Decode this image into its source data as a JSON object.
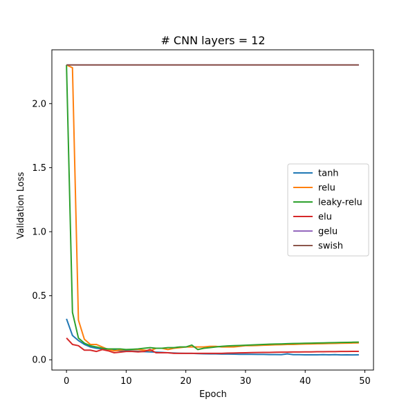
{
  "chart_data": {
    "type": "line",
    "title": "# CNN layers = 12",
    "xlabel": "Epoch",
    "ylabel": "Validation Loss",
    "xlim": [
      -2.45,
      51.45
    ],
    "ylim": [
      -0.08,
      2.42
    ],
    "xticks": [
      0,
      10,
      20,
      30,
      40,
      50
    ],
    "yticks": [
      0.0,
      0.5,
      1.0,
      1.5,
      2.0
    ],
    "xtick_labels": [
      "0",
      "10",
      "20",
      "30",
      "40",
      "50"
    ],
    "ytick_labels": [
      "0.0",
      "0.5",
      "1.0",
      "1.5",
      "2.0"
    ],
    "grid": false,
    "legend_position": "center-right",
    "series": [
      {
        "name": "tanh",
        "color": "#1f77b4",
        "values": [
          0.32,
          0.19,
          0.15,
          0.12,
          0.1,
          0.09,
          0.085,
          0.08,
          0.075,
          0.07,
          0.07,
          0.068,
          0.066,
          0.064,
          0.062,
          0.06,
          0.058,
          0.055,
          0.053,
          0.051,
          0.05,
          0.05,
          0.048,
          0.047,
          0.046,
          0.046,
          0.045,
          0.045,
          0.044,
          0.043,
          0.043,
          0.043,
          0.042,
          0.042,
          0.041,
          0.041,
          0.04,
          0.046,
          0.04,
          0.04,
          0.039,
          0.039,
          0.039,
          0.04,
          0.039,
          0.04,
          0.038,
          0.039,
          0.038,
          0.039
        ]
      },
      {
        "name": "relu",
        "color": "#ff7f0e",
        "values": [
          2.302,
          2.28,
          0.31,
          0.16,
          0.12,
          0.12,
          0.1,
          0.08,
          0.07,
          0.075,
          0.08,
          0.08,
          0.08,
          0.075,
          0.07,
          0.09,
          0.09,
          0.08,
          0.09,
          0.095,
          0.1,
          0.1,
          0.1,
          0.1,
          0.105,
          0.105,
          0.1,
          0.1,
          0.1,
          0.105,
          0.11,
          0.11,
          0.112,
          0.114,
          0.115,
          0.117,
          0.118,
          0.12,
          0.12,
          0.122,
          0.123,
          0.124,
          0.125,
          0.126,
          0.127,
          0.128,
          0.129,
          0.13,
          0.131,
          0.132
        ]
      },
      {
        "name": "leaky-relu",
        "color": "#2ca02c",
        "values": [
          2.302,
          0.37,
          0.17,
          0.13,
          0.11,
          0.1,
          0.09,
          0.085,
          0.085,
          0.085,
          0.08,
          0.082,
          0.085,
          0.09,
          0.095,
          0.09,
          0.09,
          0.095,
          0.095,
          0.1,
          0.1,
          0.115,
          0.08,
          0.09,
          0.095,
          0.1,
          0.105,
          0.108,
          0.11,
          0.112,
          0.114,
          0.116,
          0.118,
          0.12,
          0.122,
          0.123,
          0.124,
          0.126,
          0.127,
          0.128,
          0.129,
          0.13,
          0.131,
          0.132,
          0.133,
          0.134,
          0.135,
          0.136,
          0.137,
          0.138
        ]
      },
      {
        "name": "elu",
        "color": "#d62728",
        "values": [
          0.17,
          0.12,
          0.11,
          0.075,
          0.075,
          0.065,
          0.08,
          0.07,
          0.055,
          0.06,
          0.065,
          0.065,
          0.062,
          0.065,
          0.08,
          0.055,
          0.055,
          0.055,
          0.05,
          0.05,
          0.05,
          0.05,
          0.05,
          0.05,
          0.05,
          0.05,
          0.05,
          0.052,
          0.053,
          0.054,
          0.055,
          0.056,
          0.057,
          0.058,
          0.058,
          0.059,
          0.06,
          0.06,
          0.061,
          0.061,
          0.062,
          0.062,
          0.063,
          0.063,
          0.064,
          0.064,
          0.065,
          0.065,
          0.066,
          0.066
        ]
      },
      {
        "name": "gelu",
        "color": "#9467bd",
        "values": [
          2.302,
          2.302,
          2.302,
          2.302,
          2.302,
          2.302,
          2.302,
          2.302,
          2.302,
          2.302,
          2.302,
          2.302,
          2.302,
          2.302,
          2.302,
          2.302,
          2.302,
          2.302,
          2.302,
          2.302,
          2.302,
          2.302,
          2.302,
          2.302,
          2.302,
          2.302,
          2.302,
          2.302,
          2.302,
          2.302,
          2.302,
          2.302,
          2.302,
          2.302,
          2.302,
          2.302,
          2.302,
          2.302,
          2.302,
          2.302,
          2.302,
          2.302,
          2.302,
          2.302,
          2.302,
          2.302,
          2.302,
          2.302,
          2.302,
          2.302
        ]
      },
      {
        "name": "swish",
        "color": "#8c564b",
        "values": [
          2.302,
          2.302,
          2.302,
          2.302,
          2.302,
          2.302,
          2.302,
          2.302,
          2.302,
          2.302,
          2.302,
          2.302,
          2.302,
          2.302,
          2.302,
          2.302,
          2.302,
          2.302,
          2.302,
          2.302,
          2.302,
          2.302,
          2.302,
          2.302,
          2.302,
          2.302,
          2.302,
          2.302,
          2.302,
          2.302,
          2.302,
          2.302,
          2.302,
          2.302,
          2.302,
          2.302,
          2.302,
          2.302,
          2.302,
          2.302,
          2.302,
          2.302,
          2.302,
          2.302,
          2.302,
          2.302,
          2.302,
          2.302,
          2.302,
          2.302
        ]
      }
    ]
  }
}
